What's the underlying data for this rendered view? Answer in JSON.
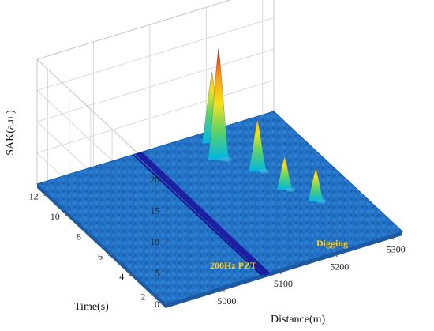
{
  "chart_data": {
    "type": "surface3d",
    "xlabel": "Distance(m)",
    "ylabel": "Time(s)",
    "zlabel": "SAK(a.u.)",
    "xlim": [
      4900,
      5320
    ],
    "ylim": [
      1,
      13
    ],
    "zlim": [
      0,
      20
    ],
    "x_ticks": [
      5000,
      5100,
      5200,
      5300
    ],
    "y_ticks": [
      2,
      4,
      6,
      8,
      10,
      12
    ],
    "z_ticks": [
      0,
      5,
      10,
      15,
      20
    ],
    "grid": true,
    "colormap": "jet",
    "baseline_level": 0,
    "trench": {
      "distance": 5080,
      "label": "200Hz PZT",
      "color": "#ffd21a"
    },
    "events": [
      {
        "distance": 5195,
        "time": 12.2,
        "peak": 11
      },
      {
        "distance": 5180,
        "time": 10.8,
        "peak": 17.5
      },
      {
        "distance": 5215,
        "time": 9.0,
        "peak": 8
      },
      {
        "distance": 5225,
        "time": 7.0,
        "peak": 5
      },
      {
        "distance": 5250,
        "time": 5.4,
        "peak": 5
      }
    ],
    "event_label": {
      "text": "Digging",
      "color": "#ffd21a"
    },
    "colors": {
      "surface": "#1f6ec0",
      "trench": "#1c1aa0",
      "grid": "#d9d9d9"
    }
  }
}
